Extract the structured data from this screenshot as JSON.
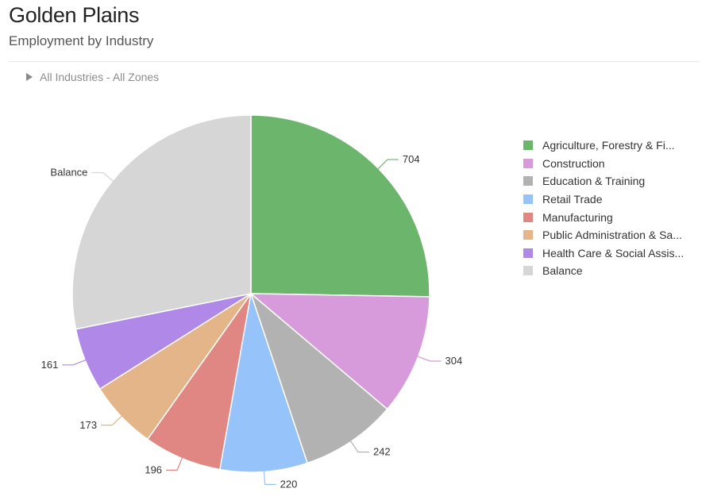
{
  "header": {
    "title": "Golden Plains",
    "subtitle": "Employment by Industry",
    "filter_label": "All Industries - All Zones"
  },
  "chart_data": {
    "type": "pie",
    "start_angle_deg": 0,
    "direction": "clockwise",
    "legend_position": "right",
    "slices": [
      {
        "name": "Agriculture, Forestry & Fi...",
        "value": 704,
        "label": "704",
        "color": "#6cb56c"
      },
      {
        "name": "Construction",
        "value": 304,
        "label": "304",
        "color": "#d79bdb"
      },
      {
        "name": "Education & Training",
        "value": 242,
        "label": "242",
        "color": "#b2b2b2"
      },
      {
        "name": "Retail Trade",
        "value": 220,
        "label": "220",
        "color": "#97c3fb"
      },
      {
        "name": "Manufacturing",
        "value": 196,
        "label": "196",
        "color": "#e08784"
      },
      {
        "name": "Public Administration & Sa...",
        "value": 173,
        "label": "173",
        "color": "#e3b588"
      },
      {
        "name": "Health Care & Social Assis...",
        "value": 161,
        "label": "161",
        "color": "#b088e7"
      },
      {
        "name": "Balance",
        "value": 785,
        "label": "Balance",
        "color": "#d6d6d6"
      }
    ]
  }
}
